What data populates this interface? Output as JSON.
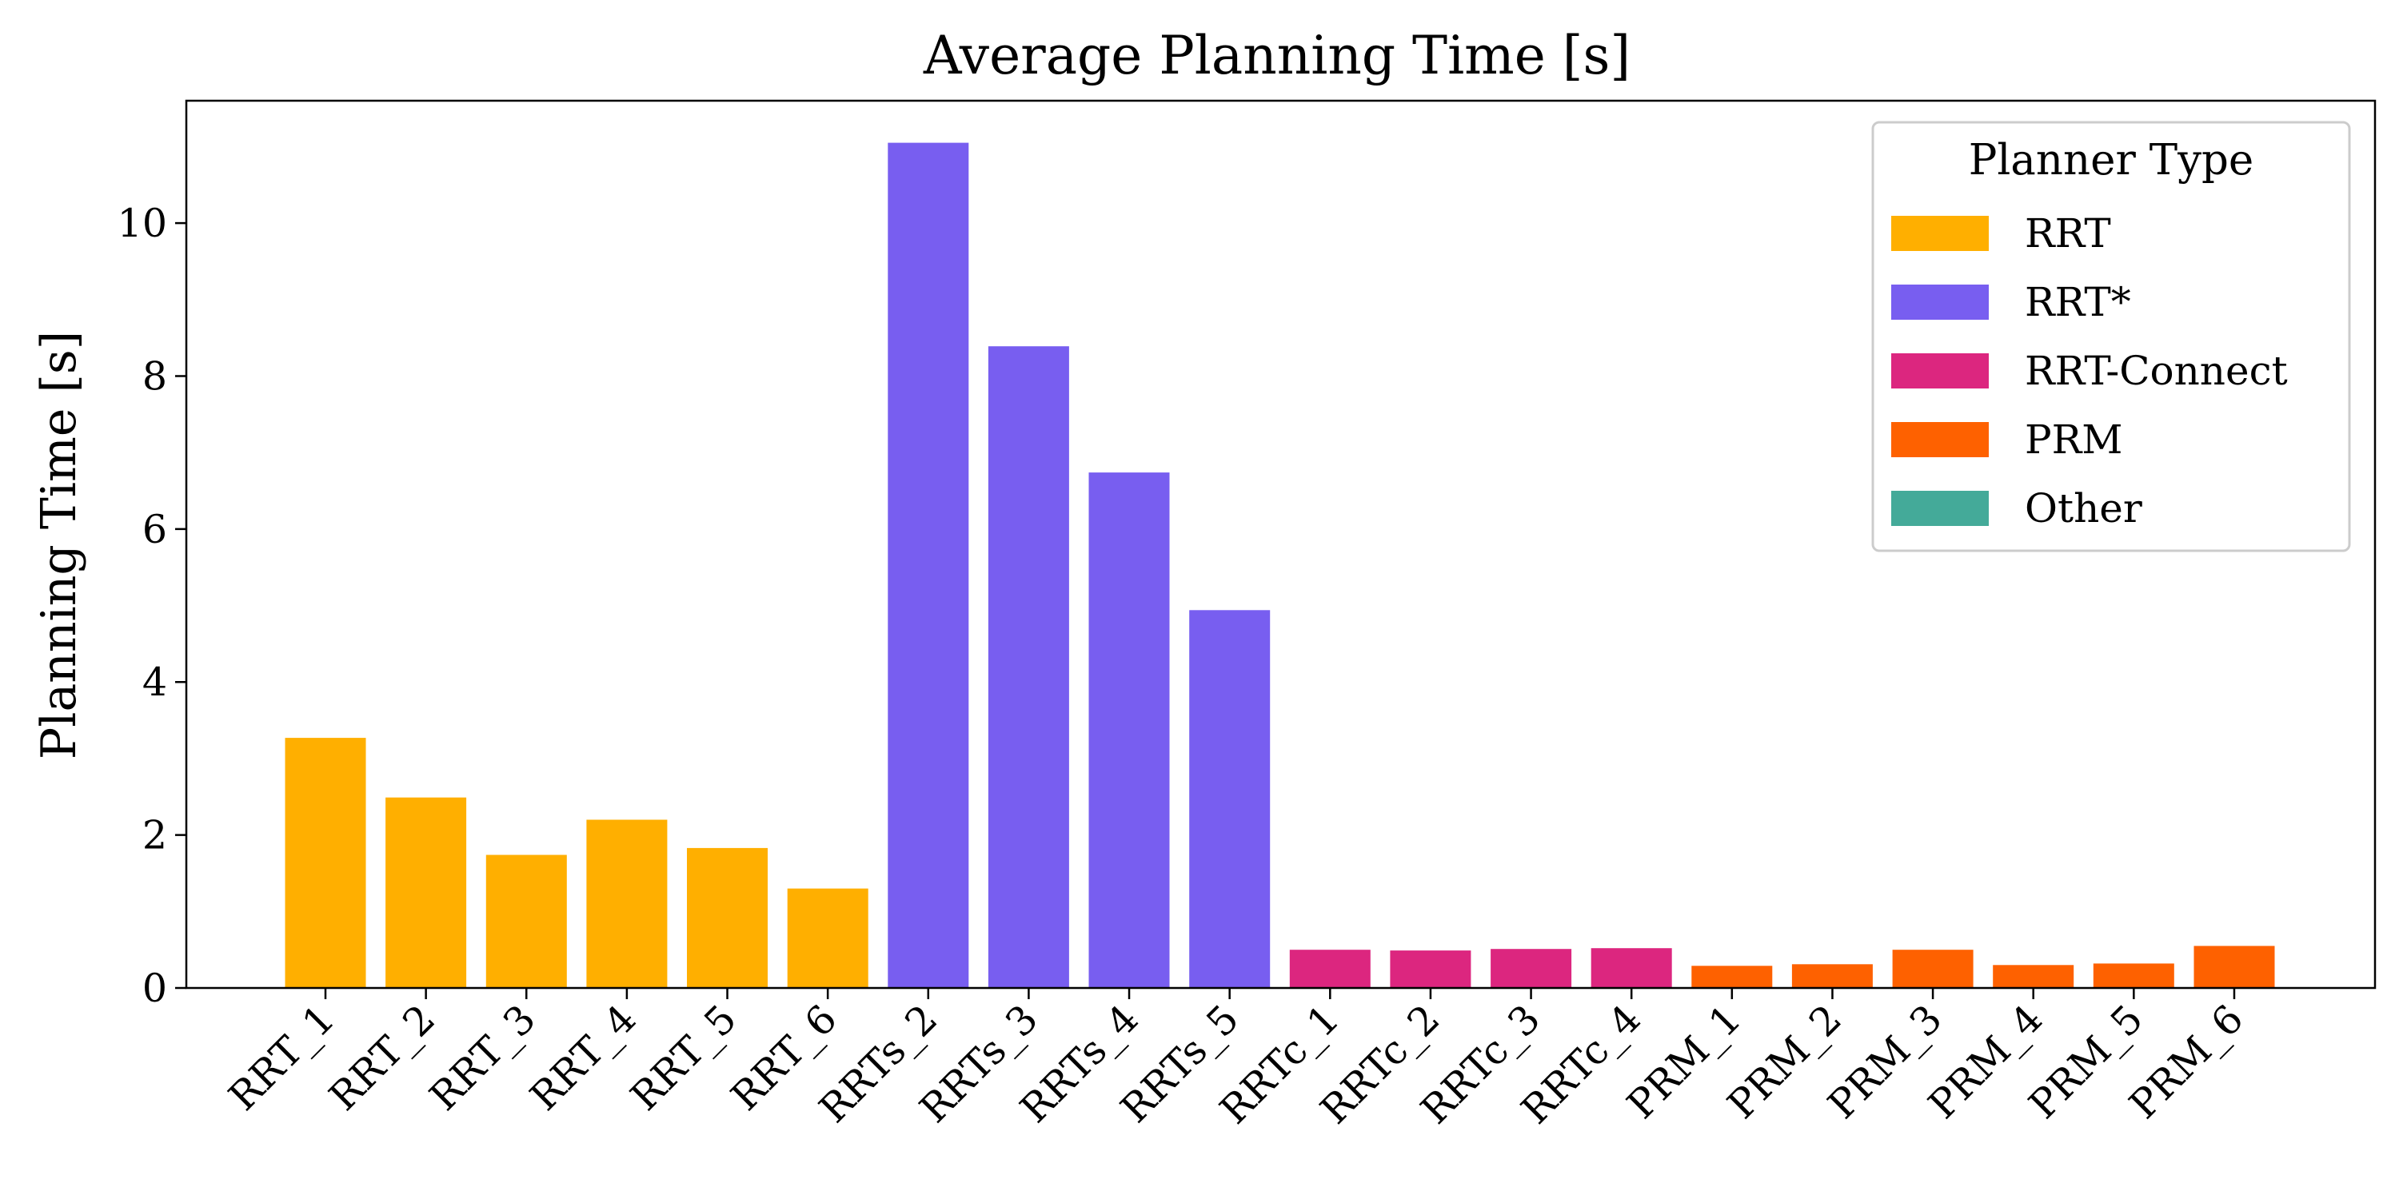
{
  "chart_data": {
    "type": "bar",
    "title": "Average Planning Time [s]",
    "xlabel": "",
    "ylabel": "Planning Time [s]",
    "ylim": [
      0,
      11.6
    ],
    "yticks": [
      0,
      2,
      4,
      6,
      8,
      10
    ],
    "grid": false,
    "legend_position": "top-right",
    "legend_title": "Planner Type",
    "categories": [
      "RRT_1",
      "RRT_2",
      "RRT_3",
      "RRT_4",
      "RRT_5",
      "RRT_6",
      "RRTs_2",
      "RRTs_3",
      "RRTs_4",
      "RRTs_5",
      "RRTc_1",
      "RRTc_2",
      "RRTc_3",
      "RRTc_4",
      "PRM_1",
      "PRM_2",
      "PRM_3",
      "PRM_4",
      "PRM_5",
      "PRM_6"
    ],
    "values": [
      3.27,
      2.49,
      1.74,
      2.2,
      1.83,
      1.3,
      11.05,
      8.39,
      6.74,
      4.94,
      0.5,
      0.49,
      0.51,
      0.52,
      0.29,
      0.31,
      0.5,
      0.3,
      0.32,
      0.55
    ],
    "groups": [
      "RRT",
      "RRT",
      "RRT",
      "RRT",
      "RRT",
      "RRT",
      "RRT*",
      "RRT*",
      "RRT*",
      "RRT*",
      "RRT-Connect",
      "RRT-Connect",
      "RRT-Connect",
      "RRT-Connect",
      "PRM",
      "PRM",
      "PRM",
      "PRM",
      "PRM",
      "PRM"
    ],
    "legend": [
      {
        "name": "RRT",
        "color": "#FFAF00"
      },
      {
        "name": "RRT*",
        "color": "#785EF0"
      },
      {
        "name": "RRT-Connect",
        "color": "#DC267F"
      },
      {
        "name": "PRM",
        "color": "#FE6100"
      },
      {
        "name": "Other",
        "color": "#44AA99"
      }
    ]
  }
}
